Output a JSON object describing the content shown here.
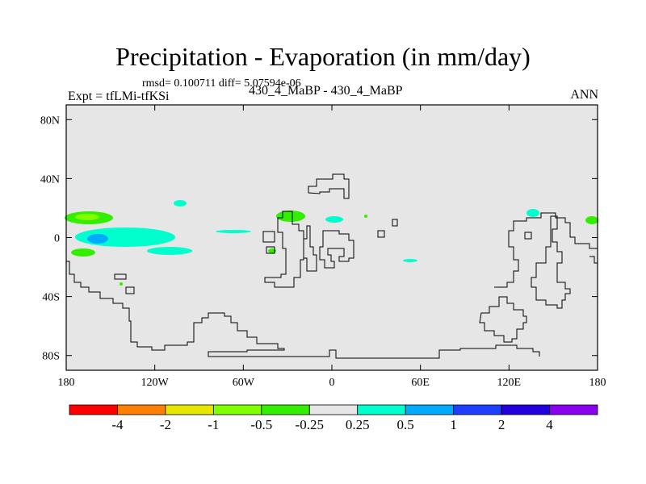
{
  "title": "Precipitation - Evaporation (in mm/day)",
  "stats": "rmsd= 0.100711 diff= 5.07594e-06",
  "left_label": "Expt = tfLMi-tfKSi",
  "center_label": "430_4_MaBP - 430_4_MaBP",
  "right_label": "ANN",
  "axes": {
    "x_ticks": [
      {
        "value": -180,
        "label": "180"
      },
      {
        "value": -120,
        "label": "120W"
      },
      {
        "value": -60,
        "label": "60W"
      },
      {
        "value": 0,
        "label": "0"
      },
      {
        "value": 60,
        "label": "60E"
      },
      {
        "value": 120,
        "label": "120E"
      },
      {
        "value": 180,
        "label": "180"
      }
    ],
    "y_ticks": [
      {
        "value": 80,
        "label": "80N"
      },
      {
        "value": 40,
        "label": "40N"
      },
      {
        "value": 0,
        "label": "0"
      },
      {
        "value": -40,
        "label": "40S"
      },
      {
        "value": -80,
        "label": "80S"
      }
    ],
    "lon_range": [
      -180,
      180
    ],
    "lat_range": [
      -90,
      90
    ]
  },
  "colorbar": {
    "colors": [
      "#ff0000",
      "#ff8000",
      "#e6e600",
      "#80ff00",
      "#33ee00",
      "#e6e6e6",
      "#00ffcc",
      "#00aaff",
      "#1f3fff",
      "#2200dd",
      "#8800ee"
    ],
    "labels": [
      "-4",
      "-2",
      "-1",
      "-0.5",
      "-0.25",
      "0.25",
      "0.5",
      "1",
      "2",
      "4"
    ]
  },
  "colors": {
    "background_field": "#e6e6e6",
    "coastline": "#000000"
  }
}
